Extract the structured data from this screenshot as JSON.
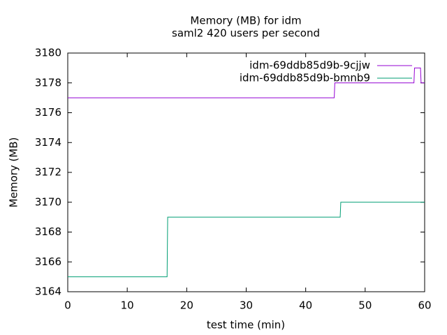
{
  "chart_data": {
    "type": "line",
    "title": "Memory (MB) for idm",
    "subtitle": "saml2 420 users per second",
    "xlabel": "test time (min)",
    "ylabel": "Memory (MB)",
    "xlim": [
      0,
      60
    ],
    "xticks": [
      0,
      10,
      20,
      30,
      40,
      50,
      60
    ],
    "ylim": [
      3164,
      3180
    ],
    "yticks": [
      3164,
      3166,
      3168,
      3170,
      3172,
      3174,
      3176,
      3178,
      3180
    ],
    "legend": "top-right",
    "series": [
      {
        "name": "idm-69ddb85d9b-9cjjw",
        "color": "#9400d3",
        "x": [
          0,
          44.8,
          44.9,
          58.2,
          58.3,
          59.3,
          59.4,
          60
        ],
        "values": [
          3177,
          3177,
          3178,
          3178,
          3179,
          3179,
          3178,
          3178
        ]
      },
      {
        "name": "idm-69ddb85d9b-bmnb9",
        "color": "#009e73",
        "x": [
          0,
          16.7,
          16.8,
          45.8,
          45.9,
          60
        ],
        "values": [
          3165,
          3165,
          3169,
          3169,
          3170,
          3170
        ]
      }
    ]
  }
}
